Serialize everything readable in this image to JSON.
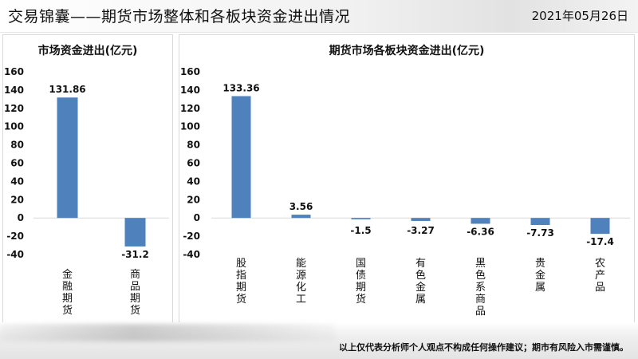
{
  "header": {
    "title": "交易锦囊——期货市场整体和各板块资金进出情况",
    "date": "2021年05月26日"
  },
  "footer": {
    "disclaimer": "以上仅代表分析师个人观点不构成任何操作建议；期市有风险入市需谨慎。"
  },
  "colors": {
    "bar": "#4f81bd"
  },
  "chart_data": [
    {
      "type": "bar",
      "title": "市场资金进出(亿元)",
      "xlabel": "",
      "ylabel": "",
      "categories": [
        "金融期货",
        "商品期货"
      ],
      "values": [
        131.86,
        -31.2
      ],
      "value_labels": [
        "131.86",
        "-31.2"
      ],
      "ylim": [
        -40,
        160
      ],
      "yticks": [
        -40,
        -20,
        0,
        20,
        40,
        60,
        80,
        100,
        120,
        140,
        160
      ],
      "grid": false,
      "legend": "none"
    },
    {
      "type": "bar",
      "title": "期货市场各板块资金进出(亿元)",
      "xlabel": "",
      "ylabel": "",
      "categories": [
        "股指期货",
        "能源化工",
        "国债期货",
        "有色金属",
        "黑色系商品",
        "贵金属",
        "农产品"
      ],
      "values": [
        133.36,
        3.56,
        -1.5,
        -3.27,
        -6.36,
        -7.73,
        -17.4
      ],
      "value_labels": [
        "133.36",
        "3.56",
        "-1.5",
        "-3.27",
        "-6.36",
        "-7.73",
        "-17.4"
      ],
      "ylim": [
        -40,
        160
      ],
      "yticks": [
        -40,
        -20,
        0,
        20,
        40,
        60,
        80,
        100,
        120,
        140,
        160
      ],
      "grid": false,
      "legend": "none"
    }
  ]
}
